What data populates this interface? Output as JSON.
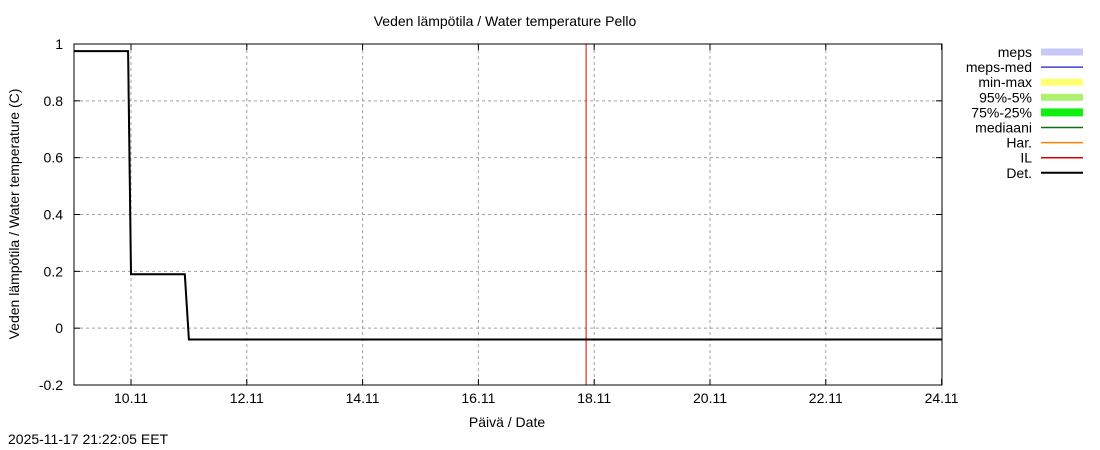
{
  "chart_data": {
    "type": "line",
    "title": "Veden lämpötila / Water temperature Pello",
    "xlabel": "Päivä / Date",
    "ylabel": "Veden lämpötila / Water temperature (C)",
    "ylim": [
      -0.2,
      1
    ],
    "yticks": [
      -0.2,
      0,
      0.2,
      0.4,
      0.6,
      0.8,
      1
    ],
    "ytick_labels": [
      "-0.2",
      "0",
      "0.2",
      "0.4",
      "0.6",
      "0.8",
      "1"
    ],
    "xlim_days": [
      9.0,
      24.0
    ],
    "xticks_days": [
      10,
      12,
      14,
      16,
      18,
      20,
      22,
      24
    ],
    "xtick_labels": [
      "10.11",
      "12.11",
      "14.11",
      "16.11",
      "18.11",
      "20.11",
      "22.11",
      "24.11"
    ],
    "grid": true,
    "legend_position": "right-outside",
    "legend": [
      {
        "label": "meps",
        "color": "#c8c8f8",
        "style": "band"
      },
      {
        "label": "meps-med",
        "color": "#4040d0",
        "style": "line"
      },
      {
        "label": "min-max",
        "color": "#ffff70",
        "style": "band"
      },
      {
        "label": "95%-5%",
        "color": "#b0f070",
        "style": "band"
      },
      {
        "label": "75%-25%",
        "color": "#10f010",
        "style": "band"
      },
      {
        "label": "mediaani",
        "color": "#107010",
        "style": "line"
      },
      {
        "label": "Har.",
        "color": "#ff8000",
        "style": "line"
      },
      {
        "label": "IL",
        "color": "#e00000",
        "style": "line"
      },
      {
        "label": "Det.",
        "color": "#000000",
        "style": "line"
      }
    ],
    "series": [
      {
        "name": "Det.",
        "color": "#000000",
        "x_days": [
          9.0,
          9.95,
          10.0,
          10.93,
          11.0,
          24.0
        ],
        "values": [
          0.975,
          0.975,
          0.19,
          0.19,
          -0.04,
          -0.04
        ]
      },
      {
        "name": "mediaani",
        "color": "#107010",
        "x_days": [
          9.95,
          10.0,
          10.93,
          11.0
        ],
        "values": [
          0.975,
          0.19,
          0.19,
          -0.04
        ]
      }
    ],
    "vertical_lines": [
      {
        "name": "IL",
        "x_days": 17.86,
        "color": "#e00000"
      }
    ]
  },
  "footer": {
    "timestamp": "2025-11-17 21:22:05 EET"
  }
}
